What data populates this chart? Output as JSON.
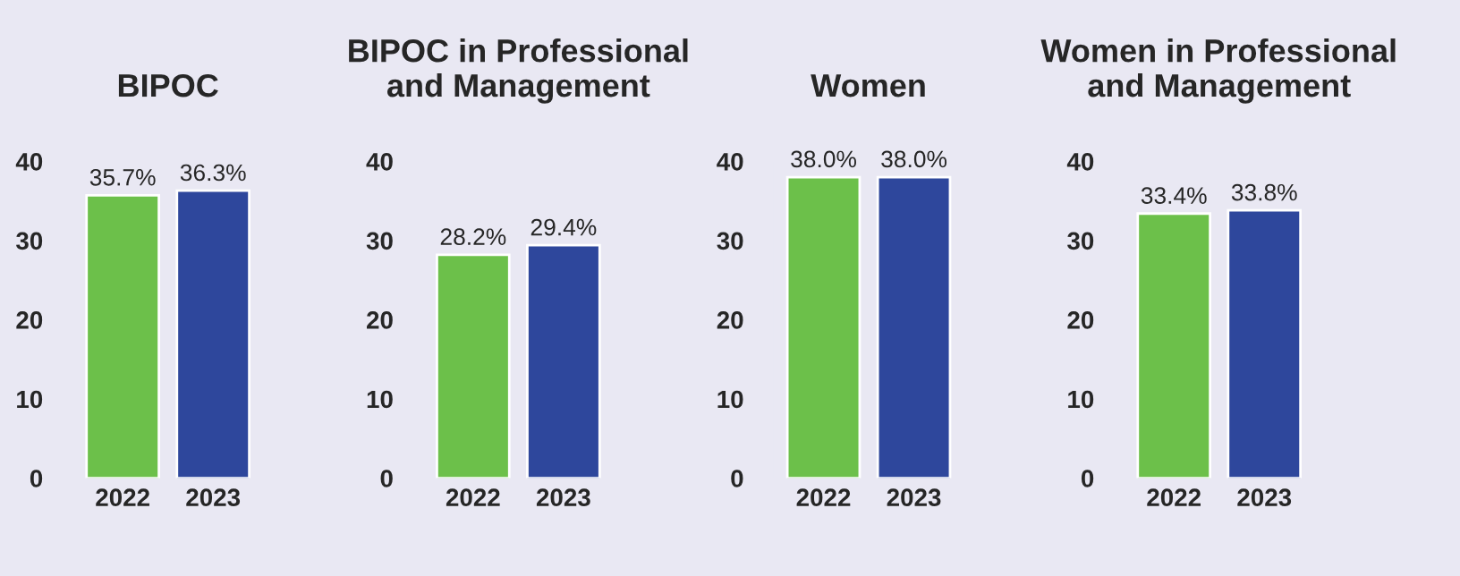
{
  "chart_data": [
    {
      "type": "bar",
      "title": "BIPOC",
      "categories": [
        "2022",
        "2023"
      ],
      "values": [
        35.7,
        36.3
      ],
      "colors": [
        "#6cc04a",
        "#2e479c"
      ],
      "value_labels": [
        "35.7%",
        "36.3%"
      ],
      "ylim": [
        0,
        40
      ],
      "yticks": [
        0,
        10,
        20,
        30,
        40
      ],
      "grid": false
    },
    {
      "type": "bar",
      "title": "BIPOC in Professional\nand Management",
      "categories": [
        "2022",
        "2023"
      ],
      "values": [
        28.2,
        29.4
      ],
      "colors": [
        "#6cc04a",
        "#2e479c"
      ],
      "value_labels": [
        "28.2%",
        "29.4%"
      ],
      "ylim": [
        0,
        40
      ],
      "yticks": [
        0,
        10,
        20,
        30,
        40
      ],
      "grid": false
    },
    {
      "type": "bar",
      "title": "Women",
      "categories": [
        "2022",
        "2023"
      ],
      "values": [
        38.0,
        38.0
      ],
      "colors": [
        "#6cc04a",
        "#2e479c"
      ],
      "value_labels": [
        "38.0%",
        "38.0%"
      ],
      "ylim": [
        0,
        40
      ],
      "yticks": [
        0,
        10,
        20,
        30,
        40
      ],
      "grid": false
    },
    {
      "type": "bar",
      "title": "Women in Professional\nand Management",
      "categories": [
        "2022",
        "2023"
      ],
      "values": [
        33.4,
        33.8
      ],
      "colors": [
        "#6cc04a",
        "#2e479c"
      ],
      "value_labels": [
        "33.4%",
        "33.8%"
      ],
      "ylim": [
        0,
        40
      ],
      "yticks": [
        0,
        10,
        20,
        30,
        40
      ],
      "grid": false
    }
  ]
}
